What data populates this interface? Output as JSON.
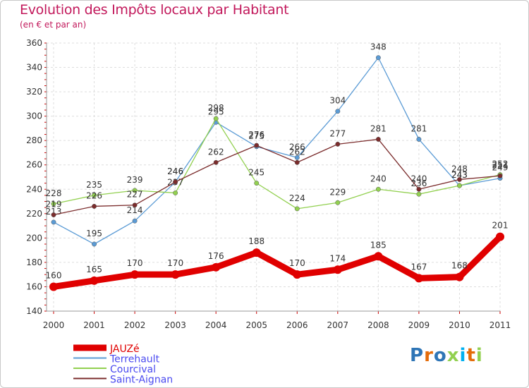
{
  "title": "Evolution des Impôts locaux par Habitant",
  "subtitle": "(en € et par an)",
  "brand": "Proxiti",
  "chart_data": {
    "type": "line",
    "title": "Evolution des Impôts locaux par Habitant",
    "ylabel": "(en € et par an)",
    "xlabel": "",
    "ylim": [
      140,
      360
    ],
    "y_ticks": [
      140,
      160,
      180,
      200,
      220,
      240,
      260,
      280,
      300,
      320,
      340,
      360
    ],
    "grid": true,
    "legend_position": "bottom-left",
    "categories": [
      "2000",
      "2001",
      "2002",
      "2003",
      "2004",
      "2005",
      "2006",
      "2007",
      "2008",
      "2009",
      "2010",
      "2011"
    ],
    "series": [
      {
        "name": "JAUZé",
        "color": "#e00000",
        "values": [
          160,
          165,
          170,
          170,
          176,
          188,
          170,
          174,
          185,
          167,
          168,
          201
        ]
      },
      {
        "name": "Terrehault",
        "color": "#5b9bd5",
        "values": [
          213,
          195,
          214,
          246,
          295,
          275,
          266,
          304,
          348,
          281,
          243,
          249
        ]
      },
      {
        "name": "Courcival",
        "color": "#92d050",
        "values": [
          228,
          235,
          239,
          237,
          298,
          245,
          224,
          229,
          240,
          236,
          243,
          252
        ]
      },
      {
        "name": "Saint-Aignan",
        "color": "#7b2c2c",
        "values": [
          219,
          226,
          227,
          246,
          262,
          276,
          262,
          277,
          281,
          240,
          248,
          251
        ]
      }
    ]
  }
}
